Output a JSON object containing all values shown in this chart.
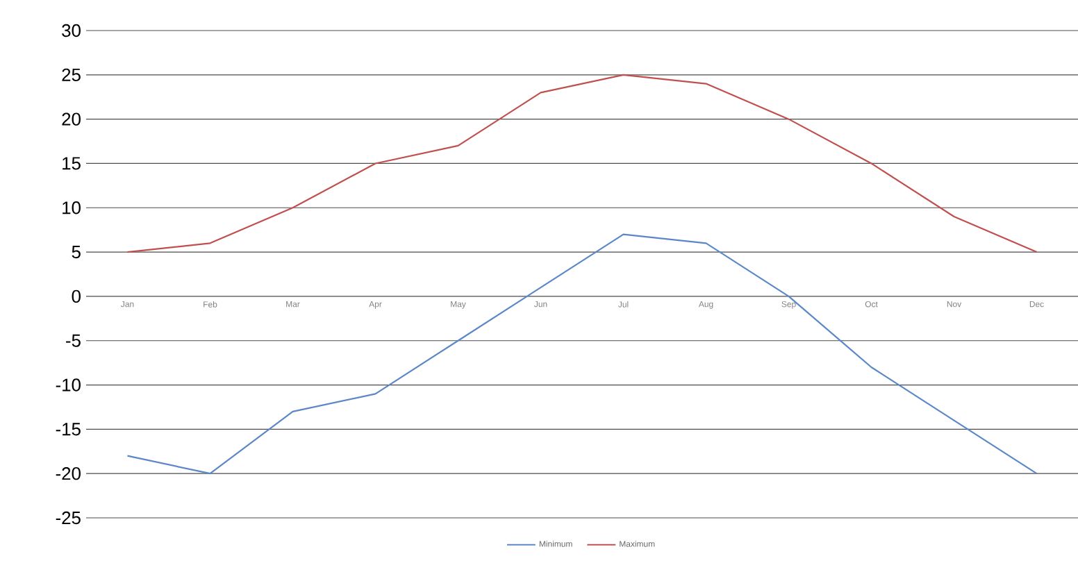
{
  "chart_data": {
    "type": "line",
    "categories": [
      "Jan",
      "Feb",
      "Mar",
      "Apr",
      "May",
      "Jun",
      "Jul",
      "Aug",
      "Sep",
      "Oct",
      "Nov",
      "Dec"
    ],
    "series": [
      {
        "name": "Minimum",
        "color": "#5b87c8",
        "values": [
          -18,
          -20,
          -13,
          -11,
          -5,
          1,
          7,
          6,
          0,
          -8,
          -14,
          -20
        ]
      },
      {
        "name": "Maximum",
        "color": "#c0504d",
        "values": [
          5,
          6,
          10,
          15,
          17,
          23,
          25,
          24,
          20,
          15,
          9,
          5
        ]
      }
    ],
    "ylim": [
      -25,
      30
    ],
    "yticks": [
      -25,
      -20,
      -15,
      -10,
      -5,
      0,
      5,
      10,
      15,
      20,
      25,
      30
    ],
    "grid": "y",
    "legend": "bottom"
  }
}
